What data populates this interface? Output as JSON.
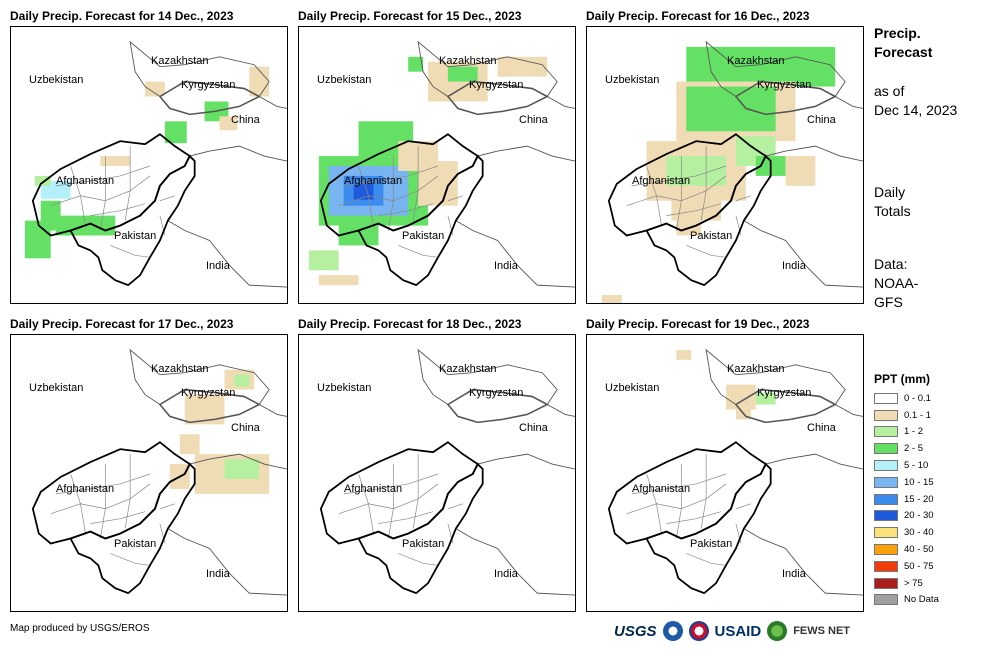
{
  "panels": [
    {
      "title": "Daily Precip. Forecast for 14 Dec., 2023",
      "date": "14 Dec., 2023"
    },
    {
      "title": "Daily Precip. Forecast for 15 Dec., 2023",
      "date": "15 Dec., 2023"
    },
    {
      "title": "Daily Precip. Forecast for 16 Dec., 2023",
      "date": "16 Dec., 2023"
    },
    {
      "title": "Daily Precip. Forecast for 17 Dec., 2023",
      "date": "17 Dec., 2023"
    },
    {
      "title": "Daily Precip. Forecast for 18 Dec., 2023",
      "date": "18 Dec., 2023"
    },
    {
      "title": "Daily Precip. Forecast for 19 Dec., 2023",
      "date": "19 Dec., 2023"
    }
  ],
  "map_labels": {
    "kazakhstan": "Kazakhstan",
    "uzbekistan": "Uzbekistan",
    "kyrgyzstan": "Kyrgyzstan",
    "china": "China",
    "afghanistan": "Afghanistan",
    "pakistan": "Pakistan",
    "india": "India"
  },
  "sidebar": {
    "title_line1": "Precip.",
    "title_line2": "Forecast",
    "asof_line1": "as of",
    "asof_line2": "Dec 14, 2023",
    "daily_line1": "Daily",
    "daily_line2": "Totals",
    "data_line1": "Data:",
    "data_line2": "NOAA-",
    "data_line3": "GFS"
  },
  "legend": {
    "title": "PPT (mm)",
    "items": [
      {
        "label": "0 - 0.1",
        "color": "#ffffff"
      },
      {
        "label": "0.1 - 1",
        "color": "#f0dcb4"
      },
      {
        "label": "1 - 2",
        "color": "#b4f0a0"
      },
      {
        "label": "2 - 5",
        "color": "#64e164"
      },
      {
        "label": "5 - 10",
        "color": "#b4f0fa"
      },
      {
        "label": "10 - 15",
        "color": "#78b4f0"
      },
      {
        "label": "15 - 20",
        "color": "#3c8cf0"
      },
      {
        "label": "20 - 30",
        "color": "#1e5adc"
      },
      {
        "label": "30 - 40",
        "color": "#fae17a"
      },
      {
        "label": "40 - 50",
        "color": "#faa00a"
      },
      {
        "label": "50 - 75",
        "color": "#f03c0a"
      },
      {
        "label": "> 75",
        "color": "#aa1e1e"
      },
      {
        "label": "No Data",
        "color": "#a0a0a0"
      }
    ]
  },
  "footer": {
    "credit": "Map produced by USGS/EROS",
    "logos": [
      "USGS",
      "NOAA",
      "NWS",
      "USAID",
      "FEWS NET"
    ]
  }
}
